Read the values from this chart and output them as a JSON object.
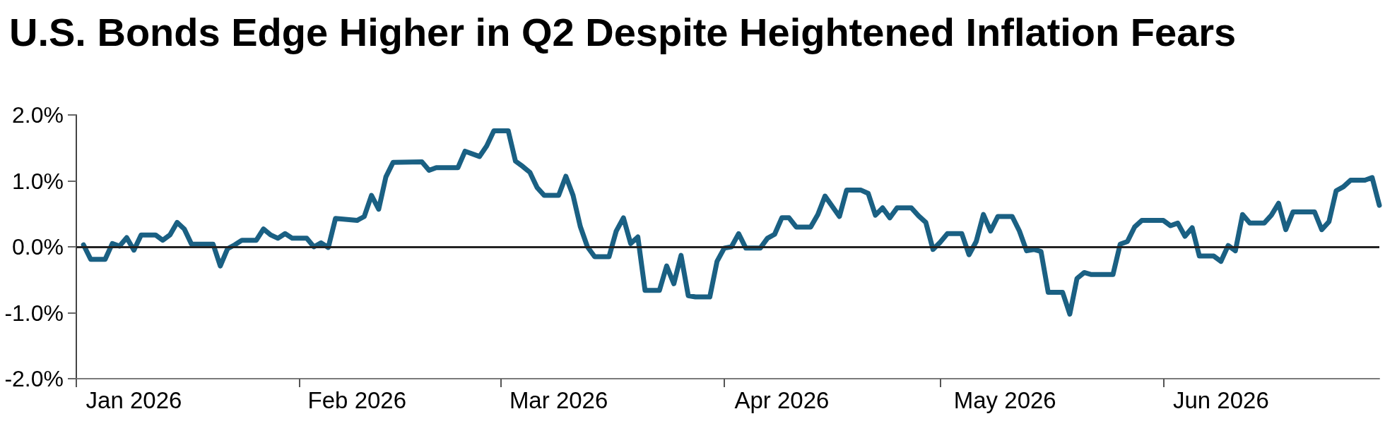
{
  "chart_data": {
    "type": "line",
    "title": "U.S. Bonds Edge Higher in Q2 Despite Heightened Inflation Fears",
    "x": [
      "2026-01-02",
      "2026-01-03",
      "2026-01-05",
      "2026-01-06",
      "2026-01-07",
      "2026-01-08",
      "2026-01-09",
      "2026-01-10",
      "2026-01-12",
      "2026-01-13",
      "2026-01-14",
      "2026-01-15",
      "2026-01-16",
      "2026-01-17",
      "2026-01-20",
      "2026-01-21",
      "2026-01-22",
      "2026-01-23",
      "2026-01-24",
      "2026-01-26",
      "2026-01-27",
      "2026-01-28",
      "2026-01-29",
      "2026-01-30",
      "2026-01-31",
      "2026-02-02",
      "2026-02-03",
      "2026-02-04",
      "2026-02-05",
      "2026-02-06",
      "2026-02-09",
      "2026-02-10",
      "2026-02-11",
      "2026-02-12",
      "2026-02-13",
      "2026-02-14",
      "2026-02-18",
      "2026-02-19",
      "2026-02-20",
      "2026-02-23",
      "2026-02-24",
      "2026-02-26",
      "2026-02-27",
      "2026-02-28",
      "2026-03-02",
      "2026-03-03",
      "2026-03-04",
      "2026-03-05",
      "2026-03-06",
      "2026-03-07",
      "2026-03-09",
      "2026-03-10",
      "2026-03-11",
      "2026-03-12",
      "2026-03-13",
      "2026-03-14",
      "2026-03-16",
      "2026-03-17",
      "2026-03-18",
      "2026-03-19",
      "2026-03-20",
      "2026-03-21",
      "2026-03-23",
      "2026-03-24",
      "2026-03-25",
      "2026-03-26",
      "2026-03-27",
      "2026-03-28",
      "2026-03-30",
      "2026-03-31",
      "2026-04-01",
      "2026-04-02",
      "2026-04-03",
      "2026-04-04",
      "2026-04-06",
      "2026-04-07",
      "2026-04-08",
      "2026-04-09",
      "2026-04-10",
      "2026-04-11",
      "2026-04-13",
      "2026-04-14",
      "2026-04-15",
      "2026-04-17",
      "2026-04-18",
      "2026-04-20",
      "2026-04-21",
      "2026-04-22",
      "2026-04-23",
      "2026-04-24",
      "2026-04-25",
      "2026-04-27",
      "2026-04-28",
      "2026-04-29",
      "2026-04-30",
      "2026-05-01",
      "2026-05-02",
      "2026-05-04",
      "2026-05-05",
      "2026-05-06",
      "2026-05-07",
      "2026-05-08",
      "2026-05-09",
      "2026-05-11",
      "2026-05-12",
      "2026-05-13",
      "2026-05-14",
      "2026-05-15",
      "2026-05-16",
      "2026-05-18",
      "2026-05-19",
      "2026-05-20",
      "2026-05-21",
      "2026-05-22",
      "2026-05-25",
      "2026-05-26",
      "2026-05-27",
      "2026-05-28",
      "2026-05-29",
      "2026-06-01",
      "2026-06-02",
      "2026-06-03",
      "2026-06-04",
      "2026-06-05",
      "2026-06-06",
      "2026-06-08",
      "2026-06-09",
      "2026-06-10",
      "2026-06-11",
      "2026-06-12",
      "2026-06-13",
      "2026-06-15",
      "2026-06-16",
      "2026-06-17",
      "2026-06-18",
      "2026-06-19",
      "2026-06-22",
      "2026-06-23",
      "2026-06-24",
      "2026-06-25",
      "2026-06-26",
      "2026-06-27",
      "2026-06-29",
      "2026-06-30",
      "2026-07-01"
    ],
    "series": [
      {
        "color": "#1a6083",
        "values": [
          0.03,
          -0.19,
          -0.19,
          0.05,
          0.01,
          0.14,
          -0.05,
          0.18,
          0.18,
          0.1,
          0.18,
          0.37,
          0.27,
          0.04,
          0.04,
          -0.29,
          -0.03,
          0.03,
          0.1,
          0.1,
          0.27,
          0.18,
          0.13,
          0.2,
          0.13,
          0.13,
          0.0,
          0.06,
          -0.01,
          0.43,
          0.4,
          0.46,
          0.78,
          0.57,
          1.06,
          1.28,
          1.29,
          1.16,
          1.2,
          1.2,
          1.45,
          1.37,
          1.53,
          1.76,
          1.76,
          1.3,
          1.22,
          1.13,
          0.9,
          0.78,
          0.78,
          1.07,
          0.78,
          0.31,
          0.0,
          -0.15,
          -0.15,
          0.24,
          0.44,
          0.05,
          0.15,
          -0.66,
          -0.66,
          -0.29,
          -0.56,
          -0.13,
          -0.74,
          -0.76,
          -0.76,
          -0.22,
          -0.02,
          0.0,
          0.2,
          -0.02,
          -0.02,
          0.13,
          0.19,
          0.44,
          0.44,
          0.3,
          0.3,
          0.49,
          0.77,
          0.46,
          0.86,
          0.86,
          0.81,
          0.48,
          0.59,
          0.44,
          0.59,
          0.59,
          0.47,
          0.37,
          -0.04,
          0.07,
          0.2,
          0.2,
          -0.12,
          0.08,
          0.49,
          0.24,
          0.46,
          0.46,
          0.24,
          -0.06,
          -0.04,
          -0.07,
          -0.69,
          -0.69,
          -1.02,
          -0.48,
          -0.39,
          -0.42,
          -0.42,
          0.04,
          0.08,
          0.3,
          0.4,
          0.4,
          0.32,
          0.36,
          0.16,
          0.29,
          -0.14,
          -0.14,
          -0.22,
          0.02,
          -0.06,
          0.49,
          0.36,
          0.36,
          0.48,
          0.66,
          0.26,
          0.53,
          0.53,
          0.26,
          0.38,
          0.85,
          0.91,
          1.01,
          1.01,
          1.05,
          0.63
        ]
      }
    ],
    "xlim": [
      "2026-01-01",
      "2026-07-01"
    ],
    "xticks": [
      {
        "value": "2026-01-01",
        "label": null
      },
      {
        "value": "2026-02-01",
        "label": null
      },
      {
        "value": "2026-03-01",
        "label": null
      },
      {
        "value": "2026-04-01",
        "label": null
      },
      {
        "value": "2026-05-01",
        "label": null
      },
      {
        "value": "2026-06-01",
        "label": null
      },
      {
        "value": "2026-01-09",
        "label": "Jan 2026"
      },
      {
        "value": "2026-02-09",
        "label": "Feb 2026"
      },
      {
        "value": "2026-03-09",
        "label": "Mar 2026"
      },
      {
        "value": "2026-04-09",
        "label": "Apr 2026"
      },
      {
        "value": "2026-05-10",
        "label": "May 2026"
      },
      {
        "value": "2026-06-09",
        "label": "Jun 2026"
      }
    ],
    "ylim": [
      -2,
      2
    ],
    "yticks": [
      {
        "value": -2,
        "label": "-2.0%"
      },
      {
        "value": -1,
        "label": "-1.0%"
      },
      {
        "value": 0,
        "label": "0.0%"
      },
      {
        "value": 1,
        "label": "1.0%"
      },
      {
        "value": 2,
        "label": "2.0%"
      }
    ],
    "ref_lines": [
      {
        "axis": "y",
        "value": 0,
        "color": "#222222"
      }
    ],
    "marker": "none",
    "line_style": "solid"
  }
}
